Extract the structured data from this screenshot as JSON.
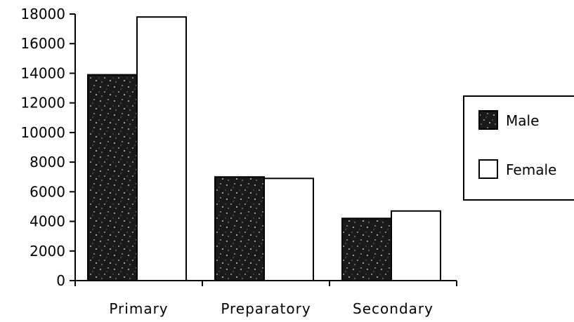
{
  "chart_data": {
    "type": "bar",
    "title": "",
    "xlabel": "",
    "ylabel": "",
    "categories": [
      "Primary",
      "Preparatory",
      "Secondary"
    ],
    "series": [
      {
        "name": "Male",
        "values": [
          13900,
          7000,
          4200
        ],
        "color": "#1a1a1a",
        "pattern": "speckled-dark"
      },
      {
        "name": "Female",
        "values": [
          17800,
          6900,
          4700
        ],
        "color": "#ffffff",
        "pattern": "none"
      }
    ],
    "ylim": [
      0,
      18000
    ],
    "yticks": [
      "0",
      "2000",
      "4000",
      "6000",
      "8000",
      "10000",
      "12000",
      "14000",
      "16000",
      "18000"
    ],
    "grid": false,
    "legend_position": "right"
  }
}
